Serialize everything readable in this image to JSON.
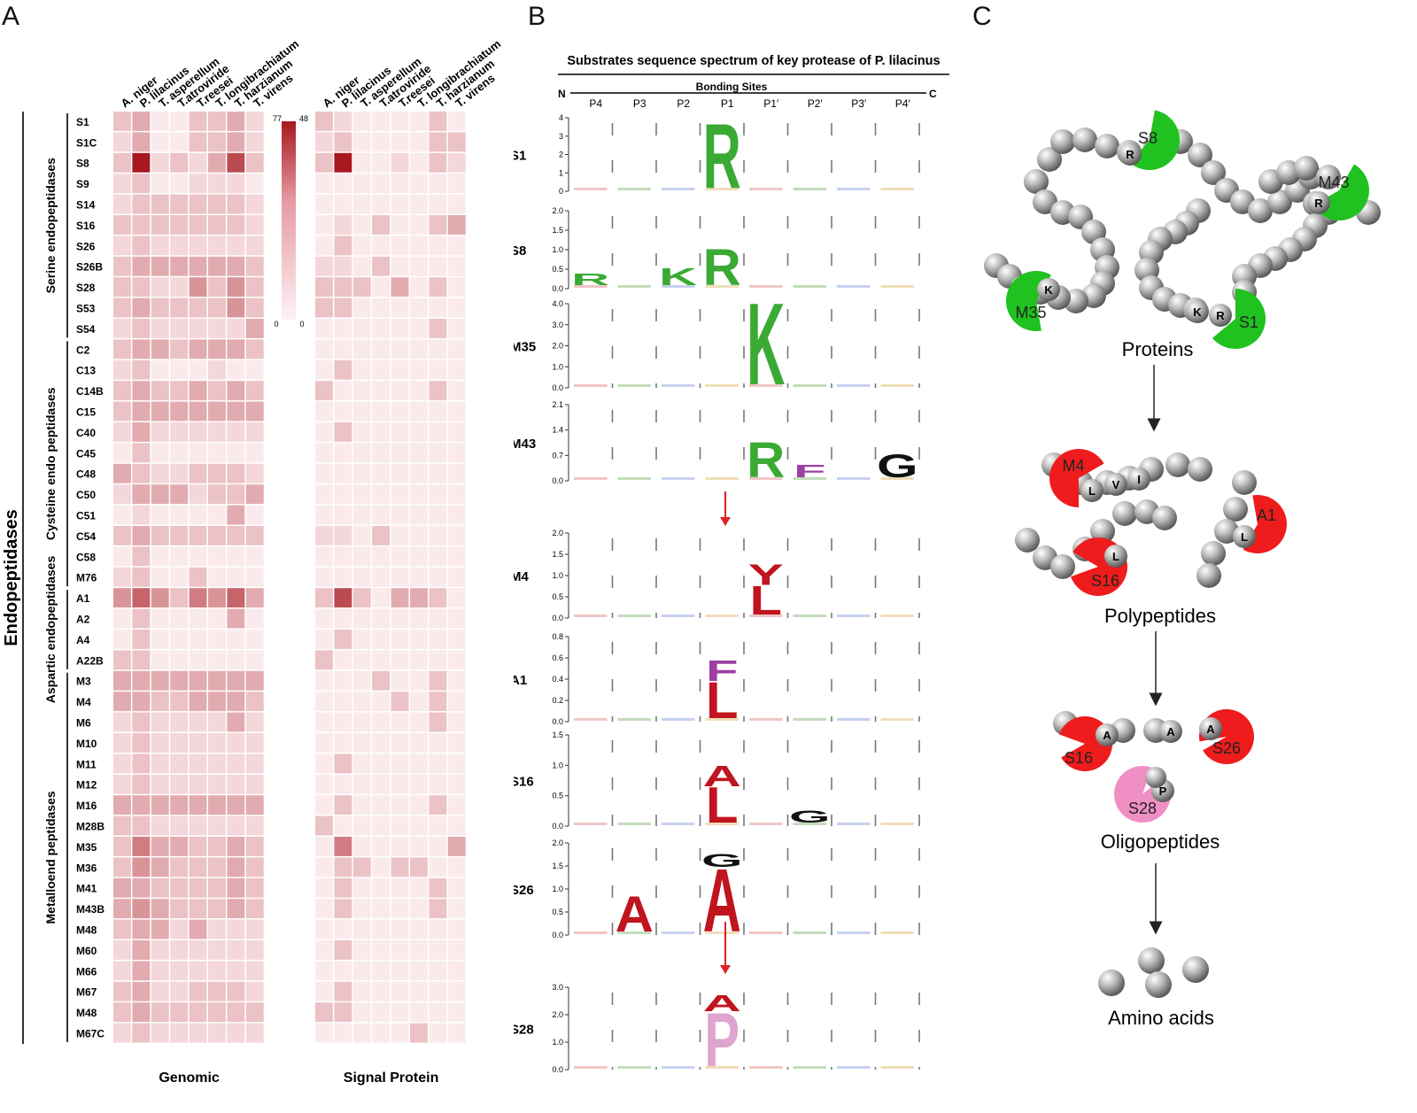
{
  "panels": {
    "a": {
      "letter": "A"
    },
    "b": {
      "letter": "B"
    },
    "c": {
      "letter": "C"
    }
  },
  "heatmap": {
    "outer_group": "Endopeptidases",
    "groups": [
      {
        "label": "Serine endopeptidases",
        "rows": [
          "S1",
          "S1C",
          "S8",
          "S9",
          "S14",
          "S16",
          "S26",
          "S26B",
          "S28",
          "S53",
          "S54"
        ]
      },
      {
        "label": "Cysteine endo peptidases",
        "rows": [
          "C2",
          "C13",
          "C14B",
          "C15",
          "C40",
          "C45",
          "C48",
          "C50",
          "C51",
          "C54",
          "C58",
          "M76"
        ]
      },
      {
        "label": "Aspartic endopeptidases",
        "rows": [
          "A1",
          "A2",
          "A4",
          "A22B"
        ]
      },
      {
        "label": "Metalloend peptidases",
        "rows": [
          "M3",
          "M4",
          "M6",
          "M10",
          "M11",
          "M12",
          "M16",
          "M28B",
          "M35",
          "M36",
          "M41",
          "M43B",
          "M48",
          "M60",
          "M66",
          "M67",
          "M48",
          "M67C"
        ]
      }
    ],
    "species": [
      "A. niger",
      "P. lilacinus",
      "T. asperellum",
      "T.atroviride",
      "T.reesei",
      "T. longibrachiatum",
      "T. harzianum",
      "T. virens"
    ],
    "genomic": {
      "title": "Genomic",
      "scale_max": "77",
      "scale_min": "0",
      "values": [
        [
          3,
          4,
          1,
          1,
          3,
          3,
          4,
          2
        ],
        [
          2,
          4,
          1,
          1,
          3,
          3,
          4,
          2
        ],
        [
          3,
          10,
          2,
          3,
          2,
          4,
          8,
          3
        ],
        [
          2,
          3,
          1,
          1,
          2,
          2,
          2,
          1
        ],
        [
          2,
          3,
          3,
          3,
          3,
          3,
          3,
          2
        ],
        [
          3,
          3,
          3,
          3,
          3,
          3,
          3,
          2
        ],
        [
          2,
          3,
          2,
          2,
          2,
          2,
          2,
          2
        ],
        [
          3,
          4,
          4,
          4,
          4,
          4,
          4,
          3
        ],
        [
          3,
          3,
          2,
          2,
          5,
          3,
          5,
          3
        ],
        [
          3,
          4,
          3,
          3,
          3,
          3,
          5,
          3
        ],
        [
          2,
          3,
          2,
          2,
          2,
          2,
          2,
          4
        ],
        [
          3,
          4,
          4,
          3,
          4,
          4,
          4,
          3
        ],
        [
          2,
          3,
          1,
          1,
          1,
          2,
          1,
          1
        ],
        [
          3,
          4,
          3,
          3,
          4,
          3,
          4,
          3
        ],
        [
          3,
          4,
          4,
          4,
          4,
          4,
          4,
          4
        ],
        [
          2,
          4,
          2,
          2,
          2,
          2,
          2,
          2
        ],
        [
          1,
          3,
          1,
          1,
          1,
          1,
          1,
          1
        ],
        [
          4,
          3,
          2,
          2,
          3,
          3,
          3,
          2
        ],
        [
          2,
          4,
          4,
          4,
          2,
          3,
          3,
          4
        ],
        [
          1,
          2,
          1,
          1,
          1,
          1,
          4,
          1
        ],
        [
          3,
          4,
          3,
          3,
          3,
          3,
          3,
          3
        ],
        [
          1,
          3,
          1,
          1,
          1,
          1,
          1,
          1
        ],
        [
          2,
          3,
          1,
          1,
          3,
          1,
          1,
          1
        ],
        [
          5,
          7,
          5,
          3,
          6,
          5,
          7,
          4
        ],
        [
          1,
          3,
          1,
          1,
          1,
          1,
          4,
          1
        ],
        [
          1,
          3,
          1,
          1,
          1,
          1,
          1,
          1
        ],
        [
          3,
          3,
          1,
          1,
          1,
          1,
          1,
          1
        ],
        [
          4,
          4,
          4,
          4,
          4,
          4,
          4,
          4
        ],
        [
          4,
          4,
          3,
          3,
          4,
          4,
          4,
          3
        ],
        [
          2,
          3,
          2,
          2,
          2,
          2,
          4,
          2
        ],
        [
          2,
          3,
          2,
          2,
          2,
          2,
          2,
          2
        ],
        [
          2,
          3,
          2,
          2,
          2,
          2,
          2,
          2
        ],
        [
          2,
          3,
          2,
          2,
          2,
          2,
          2,
          2
        ],
        [
          4,
          4,
          4,
          4,
          4,
          4,
          4,
          4
        ],
        [
          3,
          3,
          2,
          2,
          2,
          2,
          2,
          2
        ],
        [
          3,
          6,
          4,
          4,
          3,
          3,
          4,
          3
        ],
        [
          3,
          5,
          4,
          3,
          3,
          3,
          4,
          3
        ],
        [
          4,
          4,
          3,
          3,
          3,
          3,
          4,
          3
        ],
        [
          4,
          5,
          4,
          3,
          3,
          3,
          4,
          3
        ],
        [
          3,
          4,
          4,
          2,
          4,
          2,
          2,
          2
        ],
        [
          2,
          4,
          2,
          2,
          2,
          2,
          2,
          2
        ],
        [
          2,
          4,
          2,
          2,
          2,
          2,
          2,
          2
        ],
        [
          3,
          4,
          2,
          2,
          3,
          3,
          3,
          2
        ],
        [
          3,
          4,
          3,
          3,
          3,
          3,
          3,
          3
        ],
        [
          2,
          3,
          2,
          2,
          2,
          2,
          2,
          2
        ]
      ]
    },
    "signal": {
      "title": "Signal Protein",
      "scale_max": "48",
      "scale_min": "0",
      "values": [
        [
          3,
          2,
          1,
          1,
          1,
          1,
          3,
          1
        ],
        [
          2,
          3,
          1,
          1,
          1,
          1,
          3,
          3
        ],
        [
          3,
          10,
          1,
          1,
          2,
          1,
          3,
          2
        ],
        [
          1,
          1,
          1,
          1,
          1,
          1,
          1,
          1
        ],
        [
          1,
          1,
          1,
          1,
          1,
          1,
          1,
          1
        ],
        [
          1,
          2,
          1,
          3,
          1,
          1,
          3,
          4
        ],
        [
          1,
          3,
          1,
          1,
          1,
          1,
          1,
          1
        ],
        [
          2,
          2,
          1,
          3,
          1,
          1,
          1,
          1
        ],
        [
          3,
          3,
          3,
          1,
          4,
          1,
          3,
          1
        ],
        [
          3,
          3,
          1,
          1,
          1,
          1,
          1,
          1
        ],
        [
          1,
          1,
          1,
          1,
          1,
          1,
          3,
          1
        ],
        [
          1,
          1,
          1,
          1,
          1,
          1,
          1,
          1
        ],
        [
          1,
          3,
          1,
          1,
          1,
          1,
          1,
          1
        ],
        [
          3,
          1,
          1,
          1,
          1,
          1,
          3,
          1
        ],
        [
          1,
          1,
          1,
          1,
          1,
          1,
          1,
          1
        ],
        [
          1,
          3,
          1,
          1,
          1,
          1,
          1,
          1
        ],
        [
          1,
          1,
          1,
          1,
          1,
          1,
          1,
          1
        ],
        [
          1,
          1,
          1,
          1,
          1,
          1,
          1,
          1
        ],
        [
          1,
          1,
          1,
          1,
          1,
          1,
          1,
          1
        ],
        [
          1,
          1,
          1,
          1,
          1,
          1,
          1,
          1
        ],
        [
          2,
          2,
          1,
          3,
          1,
          1,
          1,
          1
        ],
        [
          1,
          1,
          1,
          1,
          1,
          1,
          1,
          1
        ],
        [
          1,
          1,
          1,
          1,
          1,
          1,
          1,
          1
        ],
        [
          3,
          8,
          3,
          1,
          4,
          4,
          3,
          1
        ],
        [
          1,
          1,
          1,
          1,
          1,
          1,
          1,
          1
        ],
        [
          1,
          3,
          1,
          1,
          1,
          1,
          1,
          1
        ],
        [
          3,
          1,
          1,
          1,
          1,
          1,
          1,
          1
        ],
        [
          1,
          1,
          1,
          3,
          1,
          1,
          3,
          1
        ],
        [
          1,
          1,
          1,
          1,
          3,
          1,
          3,
          1
        ],
        [
          1,
          1,
          1,
          1,
          1,
          1,
          3,
          1
        ],
        [
          1,
          1,
          1,
          1,
          1,
          1,
          1,
          1
        ],
        [
          1,
          3,
          1,
          1,
          1,
          1,
          1,
          1
        ],
        [
          1,
          1,
          1,
          1,
          1,
          1,
          1,
          1
        ],
        [
          1,
          3,
          1,
          1,
          1,
          1,
          3,
          1
        ],
        [
          3,
          1,
          1,
          1,
          1,
          1,
          1,
          1
        ],
        [
          1,
          6,
          1,
          1,
          1,
          1,
          1,
          4
        ],
        [
          1,
          3,
          3,
          1,
          3,
          3,
          1,
          1
        ],
        [
          1,
          3,
          1,
          1,
          1,
          1,
          3,
          1
        ],
        [
          1,
          3,
          1,
          1,
          1,
          1,
          3,
          1
        ],
        [
          1,
          1,
          1,
          1,
          1,
          1,
          1,
          1
        ],
        [
          1,
          3,
          1,
          1,
          1,
          1,
          1,
          1
        ],
        [
          1,
          1,
          1,
          1,
          1,
          1,
          1,
          1
        ],
        [
          1,
          3,
          1,
          1,
          1,
          1,
          1,
          1
        ],
        [
          3,
          3,
          1,
          1,
          1,
          1,
          1,
          1
        ],
        [
          1,
          1,
          1,
          1,
          1,
          3,
          1,
          1
        ]
      ]
    }
  },
  "logos": {
    "title": "Substrates sequence spectrum of key protease of P. lilacinus",
    "site_header": "Bonding Sites",
    "n_label": "N",
    "c_label": "C",
    "positions": [
      "P4",
      "P3",
      "P2",
      "P1",
      "P1′",
      "P2′",
      "P3′",
      "P4′"
    ],
    "rows": [
      {
        "name": "S1",
        "ticks": [
          "4",
          "3",
          "2",
          "1",
          "0"
        ],
        "ymax": 4,
        "letters": [
          {
            "pos": 3,
            "ch": "R",
            "h": 3.6,
            "color": "#3aaa35"
          }
        ]
      },
      {
        "name": "S8",
        "ticks": [
          "2.0",
          "1.5",
          "1.0",
          "0.5",
          "0.0"
        ],
        "ymax": 2.0,
        "letters": [
          {
            "pos": 0,
            "ch": "R",
            "h": 0.3,
            "color": "#3aaa35"
          },
          {
            "pos": 2,
            "ch": "K",
            "h": 0.45,
            "color": "#3aaa35"
          },
          {
            "pos": 3,
            "ch": "R",
            "h": 0.95,
            "color": "#3aaa35"
          }
        ]
      },
      {
        "name": "M35",
        "ticks": [
          "4.0",
          "3.0",
          "2.0",
          "1.0",
          "0.0"
        ],
        "ymax": 4.0,
        "letters": [
          {
            "pos": 4,
            "ch": "K",
            "h": 4.0,
            "color": "#3aaa35"
          }
        ]
      },
      {
        "name": "M43",
        "ticks": [
          "2.1",
          "1.4",
          "0.7",
          "0.0"
        ],
        "ymax": 2.1,
        "letters": [
          {
            "pos": 4,
            "ch": "R",
            "h": 1.0,
            "color": "#3aaa35"
          },
          {
            "pos": 5,
            "ch": "F",
            "h": 0.35,
            "color": "#9c3fa3"
          },
          {
            "pos": 7,
            "ch": "G",
            "h": 0.65,
            "color": "#111111"
          }
        ]
      },
      {
        "name": "M4",
        "ticks": [
          "2.0",
          "1.5",
          "1.0",
          "0.5",
          "0.0"
        ],
        "ymax": 2.0,
        "letters": [
          {
            "pos": 4,
            "ch": "L",
            "h": 0.7,
            "color": "#c0141e"
          },
          {
            "pos": 4,
            "ch": "Y",
            "h": 0.5,
            "color": "#c0141e"
          }
        ]
      },
      {
        "name": "A1",
        "ticks": [
          "0.8",
          "0.6",
          "0.4",
          "0.2",
          "0.0"
        ],
        "ymax": 0.8,
        "letters": [
          {
            "pos": 3,
            "ch": "L",
            "h": 0.35,
            "color": "#c0141e"
          },
          {
            "pos": 3,
            "ch": "F",
            "h": 0.2,
            "color": "#9c3fa3"
          }
        ]
      },
      {
        "name": "S16",
        "ticks": [
          "1.5",
          "1.0",
          "0.5",
          "0.0"
        ],
        "ymax": 1.5,
        "letters": [
          {
            "pos": 3,
            "ch": "L",
            "h": 0.6,
            "color": "#c0141e"
          },
          {
            "pos": 3,
            "ch": "A",
            "h": 0.35,
            "color": "#c0141e"
          },
          {
            "pos": 5,
            "ch": "G",
            "h": 0.2,
            "color": "#111111"
          }
        ]
      },
      {
        "name": "S26",
        "ticks": [
          "2.0",
          "1.5",
          "1.0",
          "0.5",
          "0.0"
        ],
        "ymax": 2.0,
        "letters": [
          {
            "pos": 1,
            "ch": "A",
            "h": 0.8,
            "color": "#c0141e"
          },
          {
            "pos": 3,
            "ch": "A",
            "h": 1.4,
            "color": "#c0141e"
          },
          {
            "pos": 3,
            "ch": "G",
            "h": 0.3,
            "color": "#111111"
          }
        ]
      },
      {
        "name": "S28",
        "ticks": [
          "3.0",
          "2.0",
          "1.0",
          "0.0"
        ],
        "ymax": 3.0,
        "letters": [
          {
            "pos": 3,
            "ch": "P",
            "h": 2.0,
            "color": "#dda5cf"
          },
          {
            "pos": 3,
            "ch": "A",
            "h": 0.6,
            "color": "#c0141e"
          }
        ]
      }
    ]
  },
  "pathway": {
    "stage_proteins": "Proteins",
    "stage_polypeptides": "Polypeptides",
    "stage_oligopeptides": "Oligopeptides",
    "stage_amino_acids": "Amino acids",
    "enzymes_green": [
      {
        "name": "S8",
        "residue": "R"
      },
      {
        "name": "M43",
        "residue": "R"
      },
      {
        "name": "M35",
        "residue": "K"
      },
      {
        "name": "S1",
        "residue": "R",
        "residue2": "K"
      }
    ],
    "enzymes_red": [
      {
        "name": "M4",
        "residues": [
          "L",
          "V",
          "I"
        ]
      },
      {
        "name": "A1",
        "residues": [
          "L"
        ]
      },
      {
        "name": "S16",
        "residues": [
          "L"
        ]
      }
    ],
    "enzymes_oligo": [
      {
        "name": "S16",
        "residues": [
          "A"
        ]
      },
      {
        "name": "S26",
        "residues": [
          "A",
          "A"
        ]
      },
      {
        "name": "S28",
        "residues": [
          "P"
        ]
      }
    ]
  },
  "colors": {
    "heat_low": "#fbeaec",
    "heat_high": "#a81820",
    "enzyme_green": "#1fc21f",
    "enzyme_red": "#ee1c1c",
    "enzyme_pink": "#ef8fc4",
    "arrow_red": "#d8232a"
  }
}
